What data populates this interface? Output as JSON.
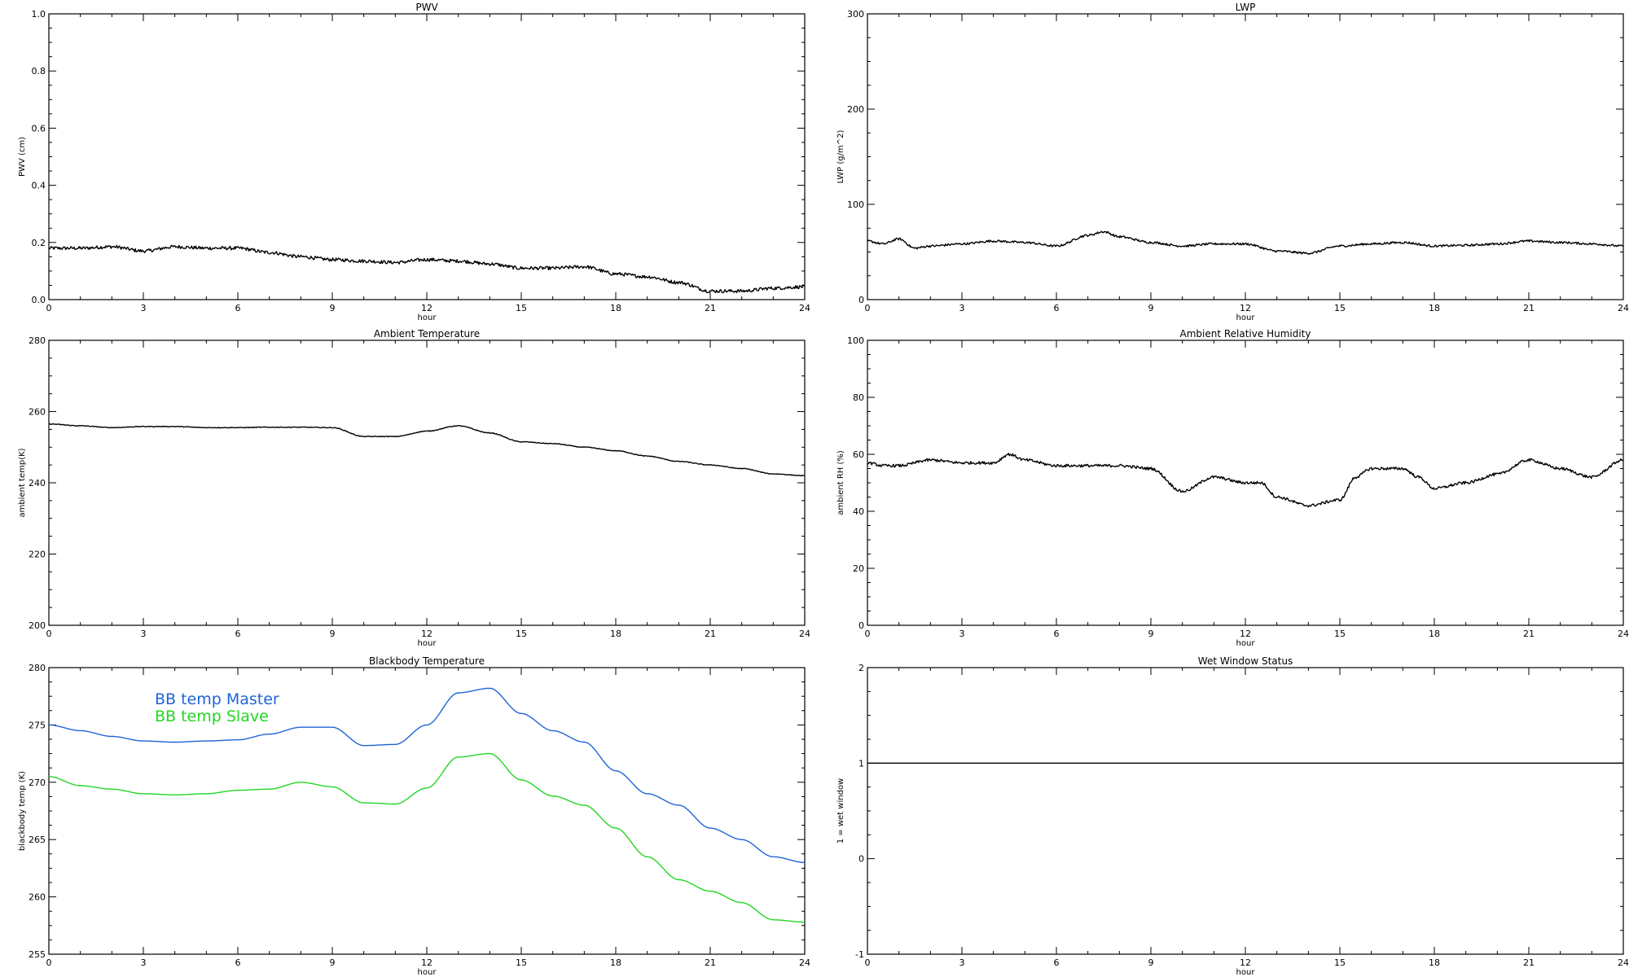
{
  "chart_data": [
    {
      "type": "line",
      "title": "PWV",
      "xlabel": "hour",
      "ylabel": "PWV (cm)",
      "xlim": [
        0,
        24
      ],
      "ylim": [
        0.0,
        1.0
      ],
      "xticks": [
        "0",
        "3",
        "6",
        "9",
        "12",
        "15",
        "18",
        "21",
        "24"
      ],
      "yticks": [
        "0.0",
        "0.2",
        "0.4",
        "0.6",
        "0.8",
        "1.0"
      ],
      "series": [
        {
          "color": "#000000",
          "noise": 0.006,
          "x": [
            0,
            1,
            2,
            3,
            4,
            5,
            6,
            7,
            8,
            9,
            10,
            11,
            12,
            13,
            14,
            15,
            16,
            17,
            18,
            19,
            20,
            21,
            22,
            23,
            24
          ],
          "y": [
            0.18,
            0.18,
            0.185,
            0.17,
            0.185,
            0.18,
            0.18,
            0.165,
            0.15,
            0.14,
            0.135,
            0.13,
            0.14,
            0.135,
            0.125,
            0.11,
            0.11,
            0.115,
            0.09,
            0.08,
            0.06,
            0.03,
            0.03,
            0.04,
            0.045
          ]
        }
      ]
    },
    {
      "type": "line",
      "title": "LWP",
      "xlabel": "hour",
      "ylabel": "LWP (g/m^2)",
      "xlim": [
        0,
        24
      ],
      "ylim": [
        -50,
        350
      ],
      "xticks": [
        "0",
        "3",
        "6",
        "9",
        "12",
        "15",
        "18",
        "21",
        "24"
      ],
      "yticks": [
        "0",
        "100",
        "200",
        "300"
      ],
      "series": [
        {
          "color": "#000000",
          "noise": 1.5,
          "x": [
            0,
            0.5,
            1,
            1.5,
            2,
            3,
            4,
            5,
            6,
            7,
            7.5,
            8,
            9,
            10,
            11,
            12,
            13,
            14,
            15,
            16,
            17,
            18,
            19,
            20,
            21,
            22,
            23,
            24
          ],
          "y": [
            32,
            28,
            35,
            22,
            25,
            28,
            32,
            30,
            25,
            40,
            45,
            38,
            30,
            25,
            28,
            28,
            18,
            15,
            25,
            28,
            30,
            25,
            26,
            28,
            32,
            30,
            28,
            25
          ]
        }
      ]
    },
    {
      "type": "line",
      "title": "Ambient Temperature",
      "xlabel": "hour",
      "ylabel": "ambient temp(K)",
      "xlim": [
        0,
        24
      ],
      "ylim": [
        200,
        280
      ],
      "xticks": [
        "0",
        "3",
        "6",
        "9",
        "12",
        "15",
        "18",
        "21",
        "24"
      ],
      "yticks": [
        "200",
        "220",
        "240",
        "260",
        "280"
      ],
      "series": [
        {
          "color": "#000000",
          "noise": 0.1,
          "x": [
            0,
            1,
            2,
            3,
            4,
            5,
            6,
            7,
            8,
            9,
            10,
            11,
            12,
            13,
            14,
            15,
            16,
            17,
            18,
            19,
            20,
            21,
            22,
            23,
            24
          ],
          "y": [
            256.5,
            256,
            255.5,
            255.8,
            255.8,
            255.5,
            255.5,
            255.6,
            255.6,
            255.5,
            253,
            253,
            254.5,
            256,
            254,
            251.5,
            251,
            250,
            249,
            247.5,
            246,
            245,
            244,
            242.5,
            242
          ]
        }
      ]
    },
    {
      "type": "line",
      "title": "Ambient Relative Humidity",
      "xlabel": "hour",
      "ylabel": "ambient RH (%)",
      "xlim": [
        0,
        24
      ],
      "ylim": [
        0,
        100
      ],
      "xticks": [
        "0",
        "3",
        "6",
        "9",
        "12",
        "15",
        "18",
        "21",
        "24"
      ],
      "yticks": [
        "0",
        "20",
        "40",
        "60",
        "80",
        "100"
      ],
      "series": [
        {
          "color": "#000000",
          "noise": 0.5,
          "x": [
            0,
            0.5,
            1,
            2,
            3,
            4,
            4.5,
            5,
            6,
            7,
            8,
            9,
            10,
            11,
            12,
            12.5,
            13,
            14,
            15,
            15.5,
            16,
            17,
            17.5,
            18,
            19,
            20,
            21,
            22,
            23,
            24
          ],
          "y": [
            57,
            56,
            56,
            58,
            57,
            57,
            60,
            58,
            56,
            56,
            56,
            55,
            47,
            52,
            50,
            50,
            45,
            42,
            44,
            52,
            55,
            55,
            52,
            48,
            50,
            53,
            58,
            55,
            52,
            58
          ]
        }
      ]
    },
    {
      "type": "line",
      "title": "Blackbody Temperature",
      "xlabel": "hour",
      "ylabel": "blackbody temp (K)",
      "xlim": [
        0,
        24
      ],
      "ylim": [
        255,
        280
      ],
      "xticks": [
        "0",
        "3",
        "6",
        "9",
        "12",
        "15",
        "18",
        "21",
        "24"
      ],
      "yticks": [
        "255",
        "260",
        "265",
        "270",
        "275",
        "280"
      ],
      "legend": "top-left",
      "series": [
        {
          "name": "BB temp Master",
          "color": "#1f64d6",
          "x": [
            0,
            1,
            2,
            3,
            4,
            5,
            6,
            7,
            8,
            9,
            10,
            11,
            12,
            13,
            14,
            15,
            16,
            17,
            18,
            19,
            20,
            21,
            22,
            23,
            24
          ],
          "y": [
            275,
            274.5,
            274,
            273.6,
            273.5,
            273.6,
            273.7,
            274.2,
            274.8,
            274.8,
            273.2,
            273.3,
            275,
            277.8,
            278.2,
            276,
            274.5,
            273.5,
            271,
            269,
            268,
            266,
            265,
            263.5,
            263
          ]
        },
        {
          "name": "BB temp Slave",
          "color": "#22d622",
          "x": [
            0,
            1,
            2,
            3,
            4,
            5,
            6,
            7,
            8,
            9,
            10,
            11,
            12,
            13,
            14,
            15,
            16,
            17,
            18,
            19,
            20,
            21,
            22,
            23,
            24
          ],
          "y": [
            270.5,
            269.7,
            269.4,
            269,
            268.9,
            269,
            269.3,
            269.4,
            270,
            269.6,
            268.2,
            268.1,
            269.5,
            272.2,
            272.5,
            270.2,
            268.8,
            268,
            266,
            263.5,
            261.5,
            260.5,
            259.5,
            258,
            257.8
          ]
        }
      ]
    },
    {
      "type": "line",
      "title": "Wet Window Status",
      "xlabel": "hour",
      "ylabel": "1 = wet window",
      "xlim": [
        0,
        24
      ],
      "ylim": [
        -1,
        2
      ],
      "xticks": [
        "0",
        "3",
        "6",
        "9",
        "12",
        "15",
        "18",
        "21",
        "24"
      ],
      "yticks": [
        "-1",
        "0",
        "1",
        "2"
      ],
      "series": [
        {
          "color": "#000000",
          "x": [
            0,
            24
          ],
          "y": [
            1,
            1
          ]
        }
      ]
    }
  ]
}
